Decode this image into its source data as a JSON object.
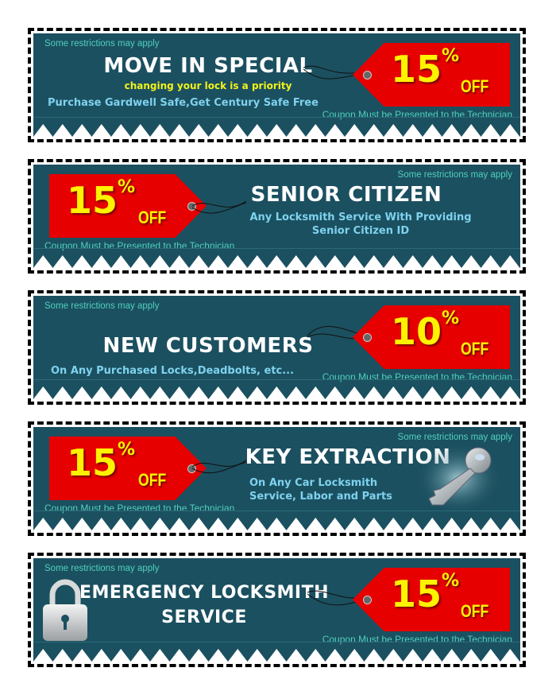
{
  "common": {
    "restrictions": "Some restrictions may apply",
    "note": "Coupon Must be Presented to the Technician",
    "off": "OFF",
    "percent_sign": "%"
  },
  "colors": {
    "panel": "#1b5060",
    "tag": "#e60000",
    "discount_text": "#fff200",
    "restrictions_text": "#4fd0bc",
    "description_text": "#7fd2ee",
    "subtitle_text": "#f2f21a"
  },
  "coupons": [
    {
      "title": "MOVE IN SPECIAL",
      "subtitle": "changing your lock is a priority",
      "description": "Purchase Gardwell Safe,Get Century Safe Free",
      "discount": "15"
    },
    {
      "title": "SENIOR CITIZEN",
      "description_lines": [
        "Any Locksmith Service With Providing",
        "Senior Citizen ID"
      ],
      "discount": "15"
    },
    {
      "title": "NEW CUSTOMERS",
      "description": "On Any Purchased Locks,Deadbolts, etc...",
      "discount": "10"
    },
    {
      "title": "KEY EXTRACTION",
      "description_lines": [
        "On Any Car Locksmith",
        "Service, Labor and Parts"
      ],
      "discount": "15",
      "icon": "key-icon"
    },
    {
      "title_lines": [
        "EMERGENCY LOCKSMITH",
        "SERVICE"
      ],
      "discount": "15",
      "icon": "padlock-icon"
    }
  ]
}
